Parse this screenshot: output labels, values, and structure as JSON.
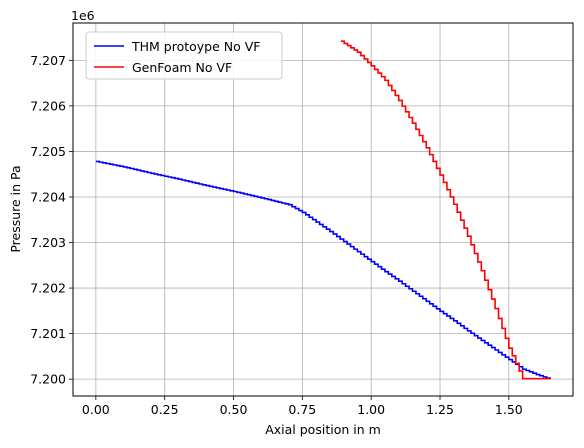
{
  "chart_data": {
    "type": "line",
    "xlabel": "Axial position in m",
    "ylabel": "Pressure in Pa",
    "y_offset_text": "1e6",
    "xlim": [
      -0.083,
      1.733
    ],
    "ylim": [
      7.19963,
      7.20782
    ],
    "xticks": [
      0.0,
      0.25,
      0.5,
      0.75,
      1.0,
      1.25,
      1.5
    ],
    "xtick_labels": [
      "0.00",
      "0.25",
      "0.50",
      "0.75",
      "1.00",
      "1.25",
      "1.50"
    ],
    "yticks": [
      7.2,
      7.201,
      7.202,
      7.203,
      7.204,
      7.205,
      7.206,
      7.207
    ],
    "ytick_labels": [
      "7.200",
      "7.201",
      "7.202",
      "7.203",
      "7.204",
      "7.205",
      "7.206",
      "7.207"
    ],
    "grid": true,
    "legend_position": "top-left",
    "series": [
      {
        "name": "THM protoype No VF",
        "color": "#0000ff",
        "x": [
          0.0,
          0.05,
          0.1,
          0.2,
          0.3,
          0.4,
          0.5,
          0.6,
          0.7,
          0.75,
          0.8,
          0.85,
          0.9,
          0.95,
          1.0,
          1.05,
          1.1,
          1.15,
          1.2,
          1.25,
          1.3,
          1.35,
          1.4,
          1.45,
          1.5,
          1.55,
          1.6,
          1.65
        ],
        "y": [
          7.20478,
          7.20472,
          7.20466,
          7.20452,
          7.20439,
          7.20425,
          7.20412,
          7.20398,
          7.20383,
          7.20366,
          7.20345,
          7.20324,
          7.20302,
          7.2028,
          7.20258,
          7.20236,
          7.20215,
          7.20193,
          7.20171,
          7.20149,
          7.20128,
          7.20106,
          7.20085,
          7.20064,
          7.20043,
          7.20022,
          7.2001,
          7.2
        ]
      },
      {
        "name": "GenFoam No VF",
        "color": "#ff0000",
        "x": [
          0.89,
          0.95,
          1.0,
          1.05,
          1.1,
          1.15,
          1.2,
          1.25,
          1.3,
          1.35,
          1.4,
          1.45,
          1.5,
          1.55,
          1.6,
          1.65
        ],
        "y": [
          7.20742,
          7.20718,
          7.20688,
          7.20656,
          7.20612,
          7.20562,
          7.20508,
          7.20448,
          7.20384,
          7.20314,
          7.20238,
          7.20155,
          7.20068,
          7.20001,
          7.20001,
          7.20001
        ]
      }
    ]
  }
}
